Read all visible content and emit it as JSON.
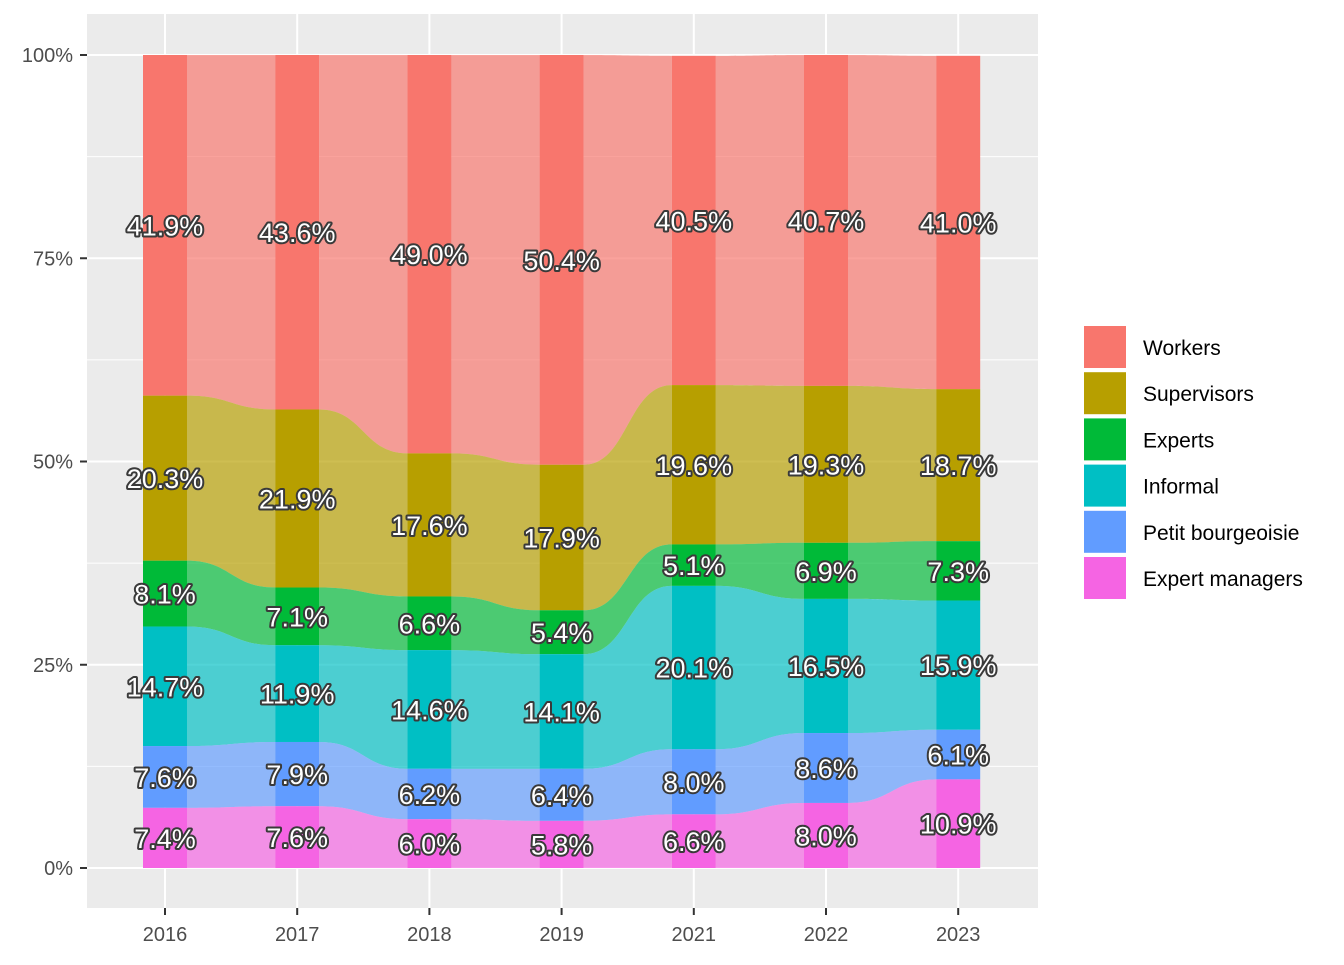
{
  "chart_data": {
    "type": "alluvial",
    "x": [
      "2016",
      "2017",
      "2018",
      "2019",
      "2021",
      "2022",
      "2023"
    ],
    "y_ticks": [
      "0%",
      "25%",
      "50%",
      "75%",
      "100%"
    ],
    "ylim": [
      0,
      100
    ],
    "grid": true,
    "legend_position": "right",
    "series": [
      {
        "name": "Workers",
        "color": "#F8766D",
        "values": [
          41.9,
          43.6,
          49.0,
          50.4,
          40.5,
          40.7,
          41.0
        ],
        "labels": [
          "41.9%",
          "43.6%",
          "49.0%",
          "50.4%",
          "40.5%",
          "40.7%",
          "41.0%"
        ]
      },
      {
        "name": "Supervisors",
        "color": "#B79F00",
        "values": [
          20.3,
          21.9,
          17.6,
          17.9,
          19.6,
          19.3,
          18.7
        ],
        "labels": [
          "20.3%",
          "21.9%",
          "17.6%",
          "17.9%",
          "19.6%",
          "19.3%",
          "18.7%"
        ]
      },
      {
        "name": "Experts",
        "color": "#00BA38",
        "values": [
          8.1,
          7.1,
          6.6,
          5.4,
          5.1,
          6.9,
          7.3
        ],
        "labels": [
          "8.1%",
          "7.1%",
          "6.6%",
          "5.4%",
          "5.1%",
          "6.9%",
          "7.3%"
        ]
      },
      {
        "name": "Informal",
        "color": "#00BFC4",
        "values": [
          14.7,
          11.9,
          14.6,
          14.1,
          20.1,
          16.5,
          15.9
        ],
        "labels": [
          "14.7%",
          "11.9%",
          "14.6%",
          "14.1%",
          "20.1%",
          "16.5%",
          "15.9%"
        ]
      },
      {
        "name": "Petit bourgeoisie",
        "color": "#619CFF",
        "values": [
          7.6,
          7.9,
          6.2,
          6.4,
          8.0,
          8.6,
          6.1
        ],
        "labels": [
          "7.6%",
          "7.9%",
          "6.2%",
          "6.4%",
          "8.0%",
          "8.6%",
          "6.1%"
        ]
      },
      {
        "name": "Expert managers",
        "color": "#F564E3",
        "values": [
          7.4,
          7.6,
          6.0,
          5.8,
          6.6,
          8.0,
          10.9
        ],
        "labels": [
          "7.4%",
          "7.6%",
          "6.0%",
          "5.8%",
          "6.6%",
          "8.0%",
          "10.9%"
        ]
      }
    ]
  }
}
